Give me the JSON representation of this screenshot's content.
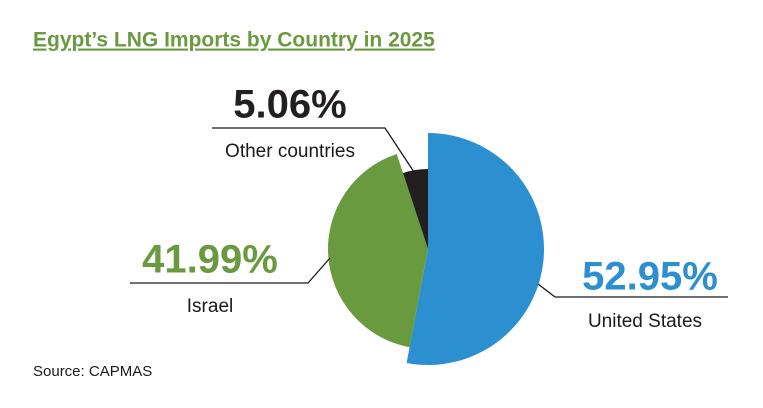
{
  "chart_data": {
    "type": "pie",
    "title": "Egypt’s LNG Imports by Country in 2025",
    "source": "Source: CAPMAS",
    "categories": [
      "United States",
      "Israel",
      "Other countries"
    ],
    "values": [
      52.95,
      41.99,
      5.06
    ],
    "value_labels": [
      "52.95%",
      "41.99%",
      "5.06%"
    ],
    "colors": [
      "#2b8fd0",
      "#6a9a40",
      "#231f20"
    ]
  }
}
